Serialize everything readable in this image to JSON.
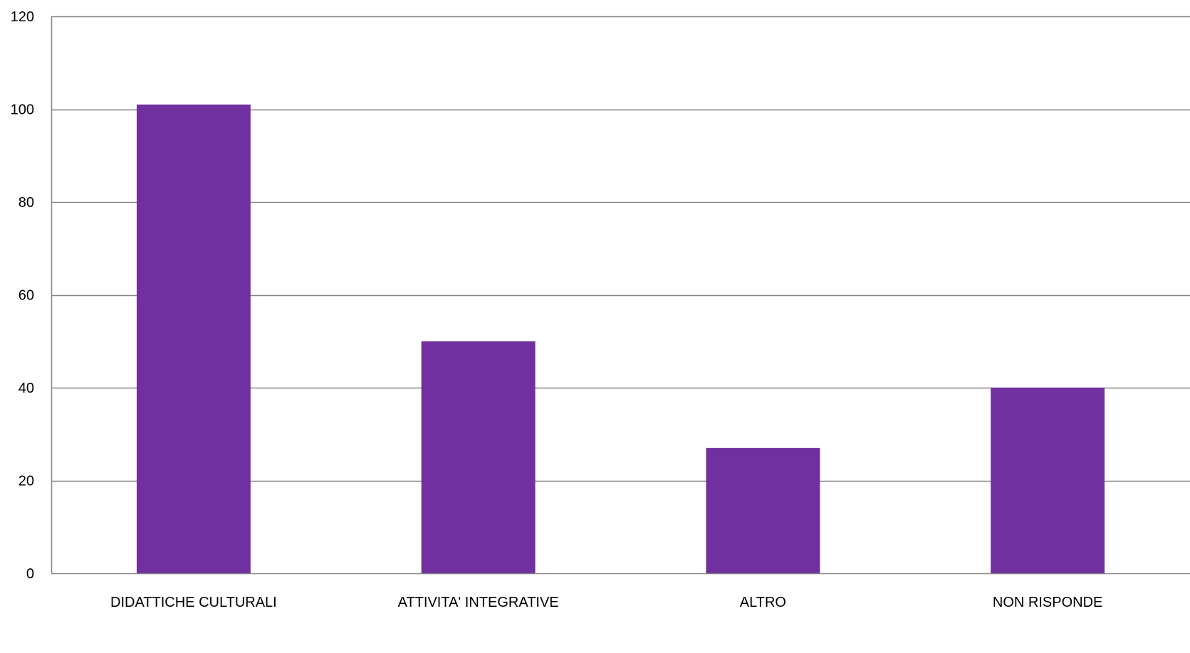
{
  "chart_data": {
    "type": "bar",
    "title": "",
    "xlabel": "",
    "ylabel": "",
    "categories": [
      "DIDATTICHE CULTURALI",
      "ATTIVITA' INTEGRATIVE",
      "ALTRO",
      "NON RISPONDE"
    ],
    "values": [
      101,
      50,
      27,
      40
    ],
    "ylim": [
      0,
      120
    ],
    "yticks": [
      0,
      20,
      40,
      60,
      80,
      100,
      120
    ],
    "grid": true,
    "legend": "none",
    "colors": {
      "bar": "#7030a0",
      "grid": "#868686",
      "axis": "#868686"
    }
  }
}
